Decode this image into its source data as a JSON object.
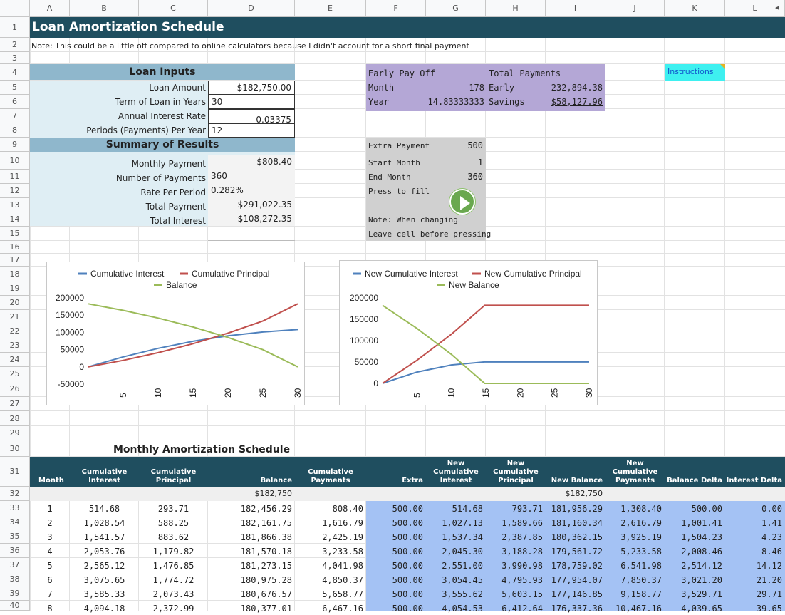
{
  "columns": [
    "A",
    "B",
    "C",
    "D",
    "E",
    "F",
    "G",
    "H",
    "I",
    "J",
    "K",
    "L"
  ],
  "rows": [
    "1",
    "2",
    "3",
    "4",
    "5",
    "6",
    "7",
    "8",
    "9",
    "10",
    "11",
    "12",
    "13",
    "14",
    "15",
    "16",
    "17",
    "18",
    "19",
    "20",
    "21",
    "22",
    "23",
    "24",
    "25",
    "26",
    "27",
    "28",
    "29",
    "30",
    "31",
    "32",
    "33",
    "34",
    "35",
    "36",
    "37",
    "38",
    "39",
    "40"
  ],
  "scroll_arrow": "◂",
  "title": "Loan Amortization Schedule",
  "note": "Note: This could be a little off compared to online calculators because I didn't account for a short final payment",
  "loan_inputs": {
    "header": "Loan Inputs",
    "labels": [
      "Loan Amount",
      "Term of Loan in Years",
      "Annual Interest Rate",
      "Periods (Payments) Per Year"
    ],
    "values": [
      "$182,750.00",
      "30",
      "0.03375",
      "12"
    ]
  },
  "summary": {
    "header": "Summary of Results",
    "labels": [
      "Monthly Payment",
      "Number of Payments",
      "Rate Per Period",
      "Total Payment",
      "Total Interest"
    ],
    "values": [
      "$808.40",
      "360",
      "0.282%",
      "$291,022.35",
      "$108,272.35"
    ]
  },
  "early_payoff": {
    "title": "Early Pay Off",
    "month_label": "Month",
    "month_value": "178",
    "year_label": "Year",
    "year_value": "14.83333333",
    "total_label": "Total Payments",
    "early_label": "Early",
    "early_value": "232,894.38",
    "savings_label": "Savings",
    "savings_value": "$58,127.96"
  },
  "extra": {
    "extra_label": "Extra Payment",
    "extra_value": "500",
    "start_label": "Start Month",
    "start_value": "1",
    "end_label": "End Month",
    "end_value": "360",
    "press_label": "Press to fill",
    "note1": "Note: When changing",
    "note2": "Leave cell before pressing"
  },
  "instructions_label": "Instructions",
  "chart_data": [
    {
      "type": "line",
      "x": [
        0,
        5,
        10,
        15,
        20,
        25,
        30
      ],
      "xticks": [
        "5",
        "10",
        "15",
        "20",
        "25",
        "30"
      ],
      "yticks": [
        "200000",
        "150000",
        "100000",
        "50000",
        "0",
        "-50000"
      ],
      "ylim": [
        -50000,
        200000
      ],
      "legend": "top",
      "series": [
        {
          "name": "Cumulative Interest",
          "color": "#4f81bd",
          "values": [
            0,
            28900,
            53700,
            74200,
            90000,
            101000,
            108272
          ]
        },
        {
          "name": "Cumulative Principal",
          "color": "#c0504d",
          "values": [
            0,
            18900,
            41200,
            67200,
            97700,
            133000,
            182750
          ]
        },
        {
          "name": "Balance",
          "color": "#9bbb59",
          "values": [
            182750,
            163850,
            141550,
            115550,
            85050,
            49750,
            0
          ]
        }
      ]
    },
    {
      "type": "line",
      "x": [
        0,
        5,
        10,
        14.83,
        15,
        20,
        25,
        30
      ],
      "xticks": [
        "5",
        "10",
        "15",
        "20",
        "25",
        "30"
      ],
      "yticks": [
        "200000",
        "150000",
        "100000",
        "50000",
        "0"
      ],
      "ylim": [
        0,
        200000
      ],
      "legend": "top",
      "series": [
        {
          "name": "New Cumulative Interest",
          "color": "#4f81bd",
          "values": [
            0,
            26500,
            43200,
            50100,
            50100,
            50100,
            50100,
            50100
          ]
        },
        {
          "name": "New Cumulative Principal",
          "color": "#c0504d",
          "values": [
            0,
            54000,
            115000,
            182750,
            182750,
            182750,
            182750,
            182750
          ]
        },
        {
          "name": "New Balance",
          "color": "#9bbb59",
          "values": [
            182750,
            128750,
            67750,
            0,
            0,
            0,
            0,
            0
          ]
        }
      ]
    }
  ],
  "schedule": {
    "title": "Monthly Amortization Schedule",
    "headers": [
      "Month",
      "Cumulative\nInterest",
      "Cumulative\nPrincipal",
      "Balance",
      "Cumulative\nPayments",
      "Extra",
      "New\nCumulative\nInterest",
      "New\nCumulative\nPrincipal",
      "New Balance",
      "New\nCumulative\nPayments",
      "Balance Delta",
      "Interest Delta"
    ],
    "start_row": [
      "",
      "",
      "",
      "$182,750",
      "",
      "",
      "",
      "",
      "$182,750",
      "",
      "",
      ""
    ],
    "rows": [
      [
        "1",
        "514.68",
        "293.71",
        "182,456.29",
        "808.40",
        "500.00",
        "514.68",
        "793.71",
        "181,956.29",
        "1,308.40",
        "500.00",
        "0.00"
      ],
      [
        "2",
        "1,028.54",
        "588.25",
        "182,161.75",
        "1,616.79",
        "500.00",
        "1,027.13",
        "1,589.66",
        "181,160.34",
        "2,616.79",
        "1,001.41",
        "1.41"
      ],
      [
        "3",
        "1,541.57",
        "883.62",
        "181,866.38",
        "2,425.19",
        "500.00",
        "1,537.34",
        "2,387.85",
        "180,362.15",
        "3,925.19",
        "1,504.23",
        "4.23"
      ],
      [
        "4",
        "2,053.76",
        "1,179.82",
        "181,570.18",
        "3,233.58",
        "500.00",
        "2,045.30",
        "3,188.28",
        "179,561.72",
        "5,233.58",
        "2,008.46",
        "8.46"
      ],
      [
        "5",
        "2,565.12",
        "1,476.85",
        "181,273.15",
        "4,041.98",
        "500.00",
        "2,551.00",
        "3,990.98",
        "178,759.02",
        "6,541.98",
        "2,514.12",
        "14.12"
      ],
      [
        "6",
        "3,075.65",
        "1,774.72",
        "180,975.28",
        "4,850.37",
        "500.00",
        "3,054.45",
        "4,795.93",
        "177,954.07",
        "7,850.37",
        "3,021.20",
        "21.20"
      ],
      [
        "7",
        "3,585.33",
        "2,073.43",
        "180,676.57",
        "5,658.77",
        "500.00",
        "3,555.62",
        "5,603.15",
        "177,146.85",
        "9,158.77",
        "3,529.71",
        "29.71"
      ],
      [
        "8",
        "4,094.18",
        "2,372.99",
        "180,377.01",
        "6,467.16",
        "500.00",
        "4,054.53",
        "6,412.64",
        "176,337.36",
        "10,467.16",
        "4,039.65",
        "39.65"
      ]
    ]
  }
}
